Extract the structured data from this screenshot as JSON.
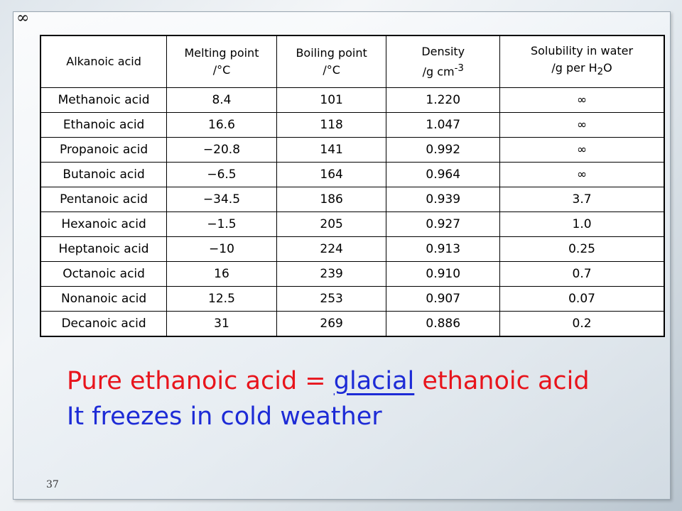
{
  "corner_symbol": "∞",
  "table": {
    "headers": {
      "acid": "Alkanoic acid",
      "mp_line1": "Melting point",
      "mp_line2": "/°C",
      "bp_line1": "Boiling point",
      "bp_line2": "/°C",
      "density_line1": "Density",
      "density_line2": "/g cm",
      "density_sup": "-3",
      "sol_line1": "Solubility in water",
      "sol_line2a": "/g per H",
      "sol_sub": "2",
      "sol_line2b": "O"
    },
    "rows": [
      {
        "acid": "Methanoic acid",
        "mp": "8.4",
        "bp": "101",
        "density": "1.220",
        "solubility": "∞"
      },
      {
        "acid": "Ethanoic acid",
        "mp": "16.6",
        "bp": "118",
        "density": "1.047",
        "solubility": "∞"
      },
      {
        "acid": "Propanoic acid",
        "mp": "−20.8",
        "bp": "141",
        "density": "0.992",
        "solubility": "∞"
      },
      {
        "acid": "Butanoic acid",
        "mp": "−6.5",
        "bp": "164",
        "density": "0.964",
        "solubility": "∞"
      },
      {
        "acid": "Pentanoic acid",
        "mp": "−34.5",
        "bp": "186",
        "density": "0.939",
        "solubility": "3.7"
      },
      {
        "acid": "Hexanoic acid",
        "mp": "−1.5",
        "bp": "205",
        "density": "0.927",
        "solubility": "1.0"
      },
      {
        "acid": "Heptanoic acid",
        "mp": "−10",
        "bp": "224",
        "density": "0.913",
        "solubility": "0.25"
      },
      {
        "acid": "Octanoic acid",
        "mp": "16",
        "bp": "239",
        "density": "0.910",
        "solubility": "0.7"
      },
      {
        "acid": "Nonanoic acid",
        "mp": "12.5",
        "bp": "253",
        "density": "0.907",
        "solubility": "0.07"
      },
      {
        "acid": "Decanoic acid",
        "mp": "31",
        "bp": "269",
        "density": "0.886",
        "solubility": "0.2"
      }
    ]
  },
  "caption": {
    "line1_pre": "Pure ethanoic acid = ",
    "line1_glacial": "glacial",
    "line1_post": " ethanoic acid",
    "line2": "It freezes in cold weather"
  },
  "slide_number": "37",
  "colors": {
    "red": "#e8141c",
    "blue": "#1d2bd6"
  }
}
